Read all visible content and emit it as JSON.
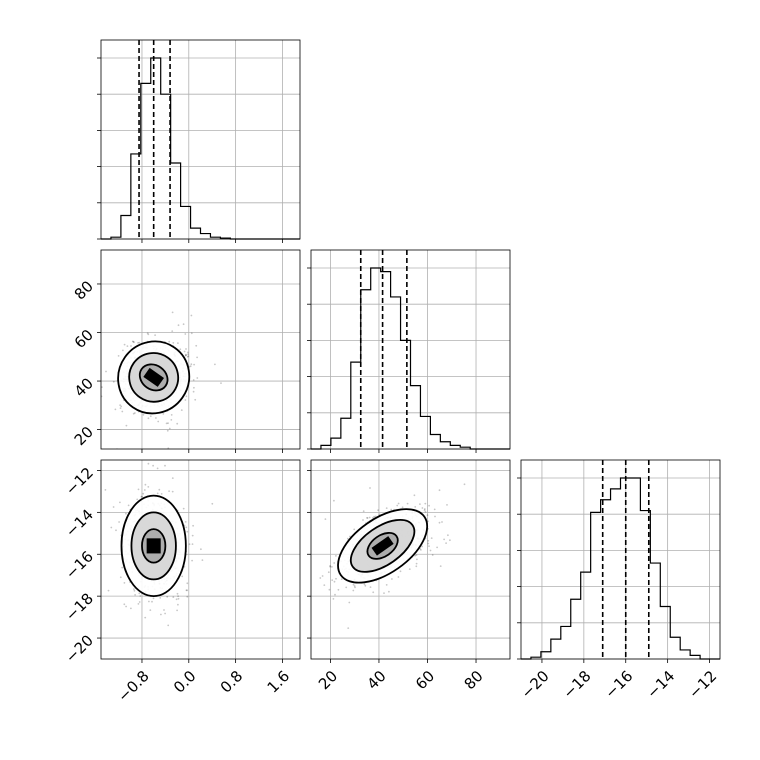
{
  "chart_data": {
    "type": "corner",
    "grid": true,
    "parameters": [
      {
        "id": "p1",
        "xlim": [
          -1.5,
          1.9
        ],
        "xticks": [
          -0.8,
          0.0,
          0.8,
          1.6
        ],
        "xtick_labels": [
          "−0.8",
          "0.0",
          "0.8",
          "1.6"
        ],
        "bins_start": -1.5,
        "bin_width": 0.17,
        "counts": [
          0,
          0.01,
          0.13,
          0.47,
          0.86,
          1.0,
          0.8,
          0.42,
          0.18,
          0.06,
          0.03,
          0.01,
          0.005,
          0,
          0,
          0,
          0,
          0,
          0,
          0
        ],
        "quantiles": [
          -0.85,
          -0.6,
          -0.32
        ]
      },
      {
        "id": "p2",
        "xlim": [
          12,
          94
        ],
        "xticks": [
          20,
          40,
          60,
          80
        ],
        "xtick_labels": [
          "20",
          "40",
          "60",
          "80"
        ],
        "yticks": [
          20,
          40,
          60,
          80
        ],
        "ytick_labels": [
          "20",
          "40",
          "60",
          "80"
        ],
        "bins_start": 12,
        "bin_width": 4.1,
        "counts": [
          0,
          0.02,
          0.06,
          0.17,
          0.48,
          0.88,
          1.0,
          0.98,
          0.84,
          0.6,
          0.35,
          0.18,
          0.08,
          0.04,
          0.02,
          0.01,
          0,
          0,
          0,
          0
        ],
        "quantiles": [
          32.5,
          41.5,
          51.5
        ]
      },
      {
        "id": "p3",
        "xlim": [
          -21,
          -11.5
        ],
        "xticks": [
          -20,
          -18,
          -16,
          -14,
          -12
        ],
        "xtick_labels": [
          "−20",
          "−18",
          "−16",
          "−14",
          "−12"
        ],
        "yticks": [
          -20,
          -18,
          -16,
          -14,
          -12
        ],
        "ytick_labels": [
          "−20",
          "−18",
          "−16",
          "−14",
          "−12"
        ],
        "bins_start": -21,
        "bin_width": 0.475,
        "counts": [
          0,
          0.01,
          0.04,
          0.11,
          0.18,
          0.33,
          0.48,
          0.81,
          0.88,
          0.94,
          1.0,
          1.0,
          0.82,
          0.53,
          0.29,
          0.12,
          0.05,
          0.02,
          0,
          0
        ],
        "quantiles": [
          -17.1,
          -16.0,
          -14.9
        ]
      }
    ],
    "pairs": [
      {
        "x": "p1",
        "y": "p2",
        "center": [
          -0.6,
          41.5
        ],
        "contours": [
          {
            "level": 1,
            "rx": 0.25,
            "ry": 5,
            "rot": 35
          },
          {
            "level": 2,
            "rx": 0.42,
            "ry": 10,
            "rot": 35
          },
          {
            "level": 3,
            "rx": 0.6,
            "ry": 15,
            "rot": 35
          }
        ],
        "sample_count": 900
      },
      {
        "x": "p1",
        "y": "p3",
        "center": [
          -0.6,
          -15.6
        ],
        "contours": [
          {
            "level": 1,
            "rx": 0.2,
            "ry": 0.8,
            "rot": 0
          },
          {
            "level": 2,
            "rx": 0.38,
            "ry": 1.6,
            "rot": 0
          },
          {
            "level": 3,
            "rx": 0.55,
            "ry": 2.4,
            "rot": 0
          }
        ],
        "sample_count": 900
      },
      {
        "x": "p2",
        "y": "p3",
        "center": [
          41.5,
          -15.6
        ],
        "contours": [
          {
            "level": 1,
            "rx": 7,
            "ry": 0.5,
            "rot": -35
          },
          {
            "level": 2,
            "rx": 15,
            "ry": 0.9,
            "rot": -35
          },
          {
            "level": 3,
            "rx": 21,
            "ry": 1.3,
            "rot": -35
          }
        ],
        "sample_count": 900
      }
    ]
  }
}
